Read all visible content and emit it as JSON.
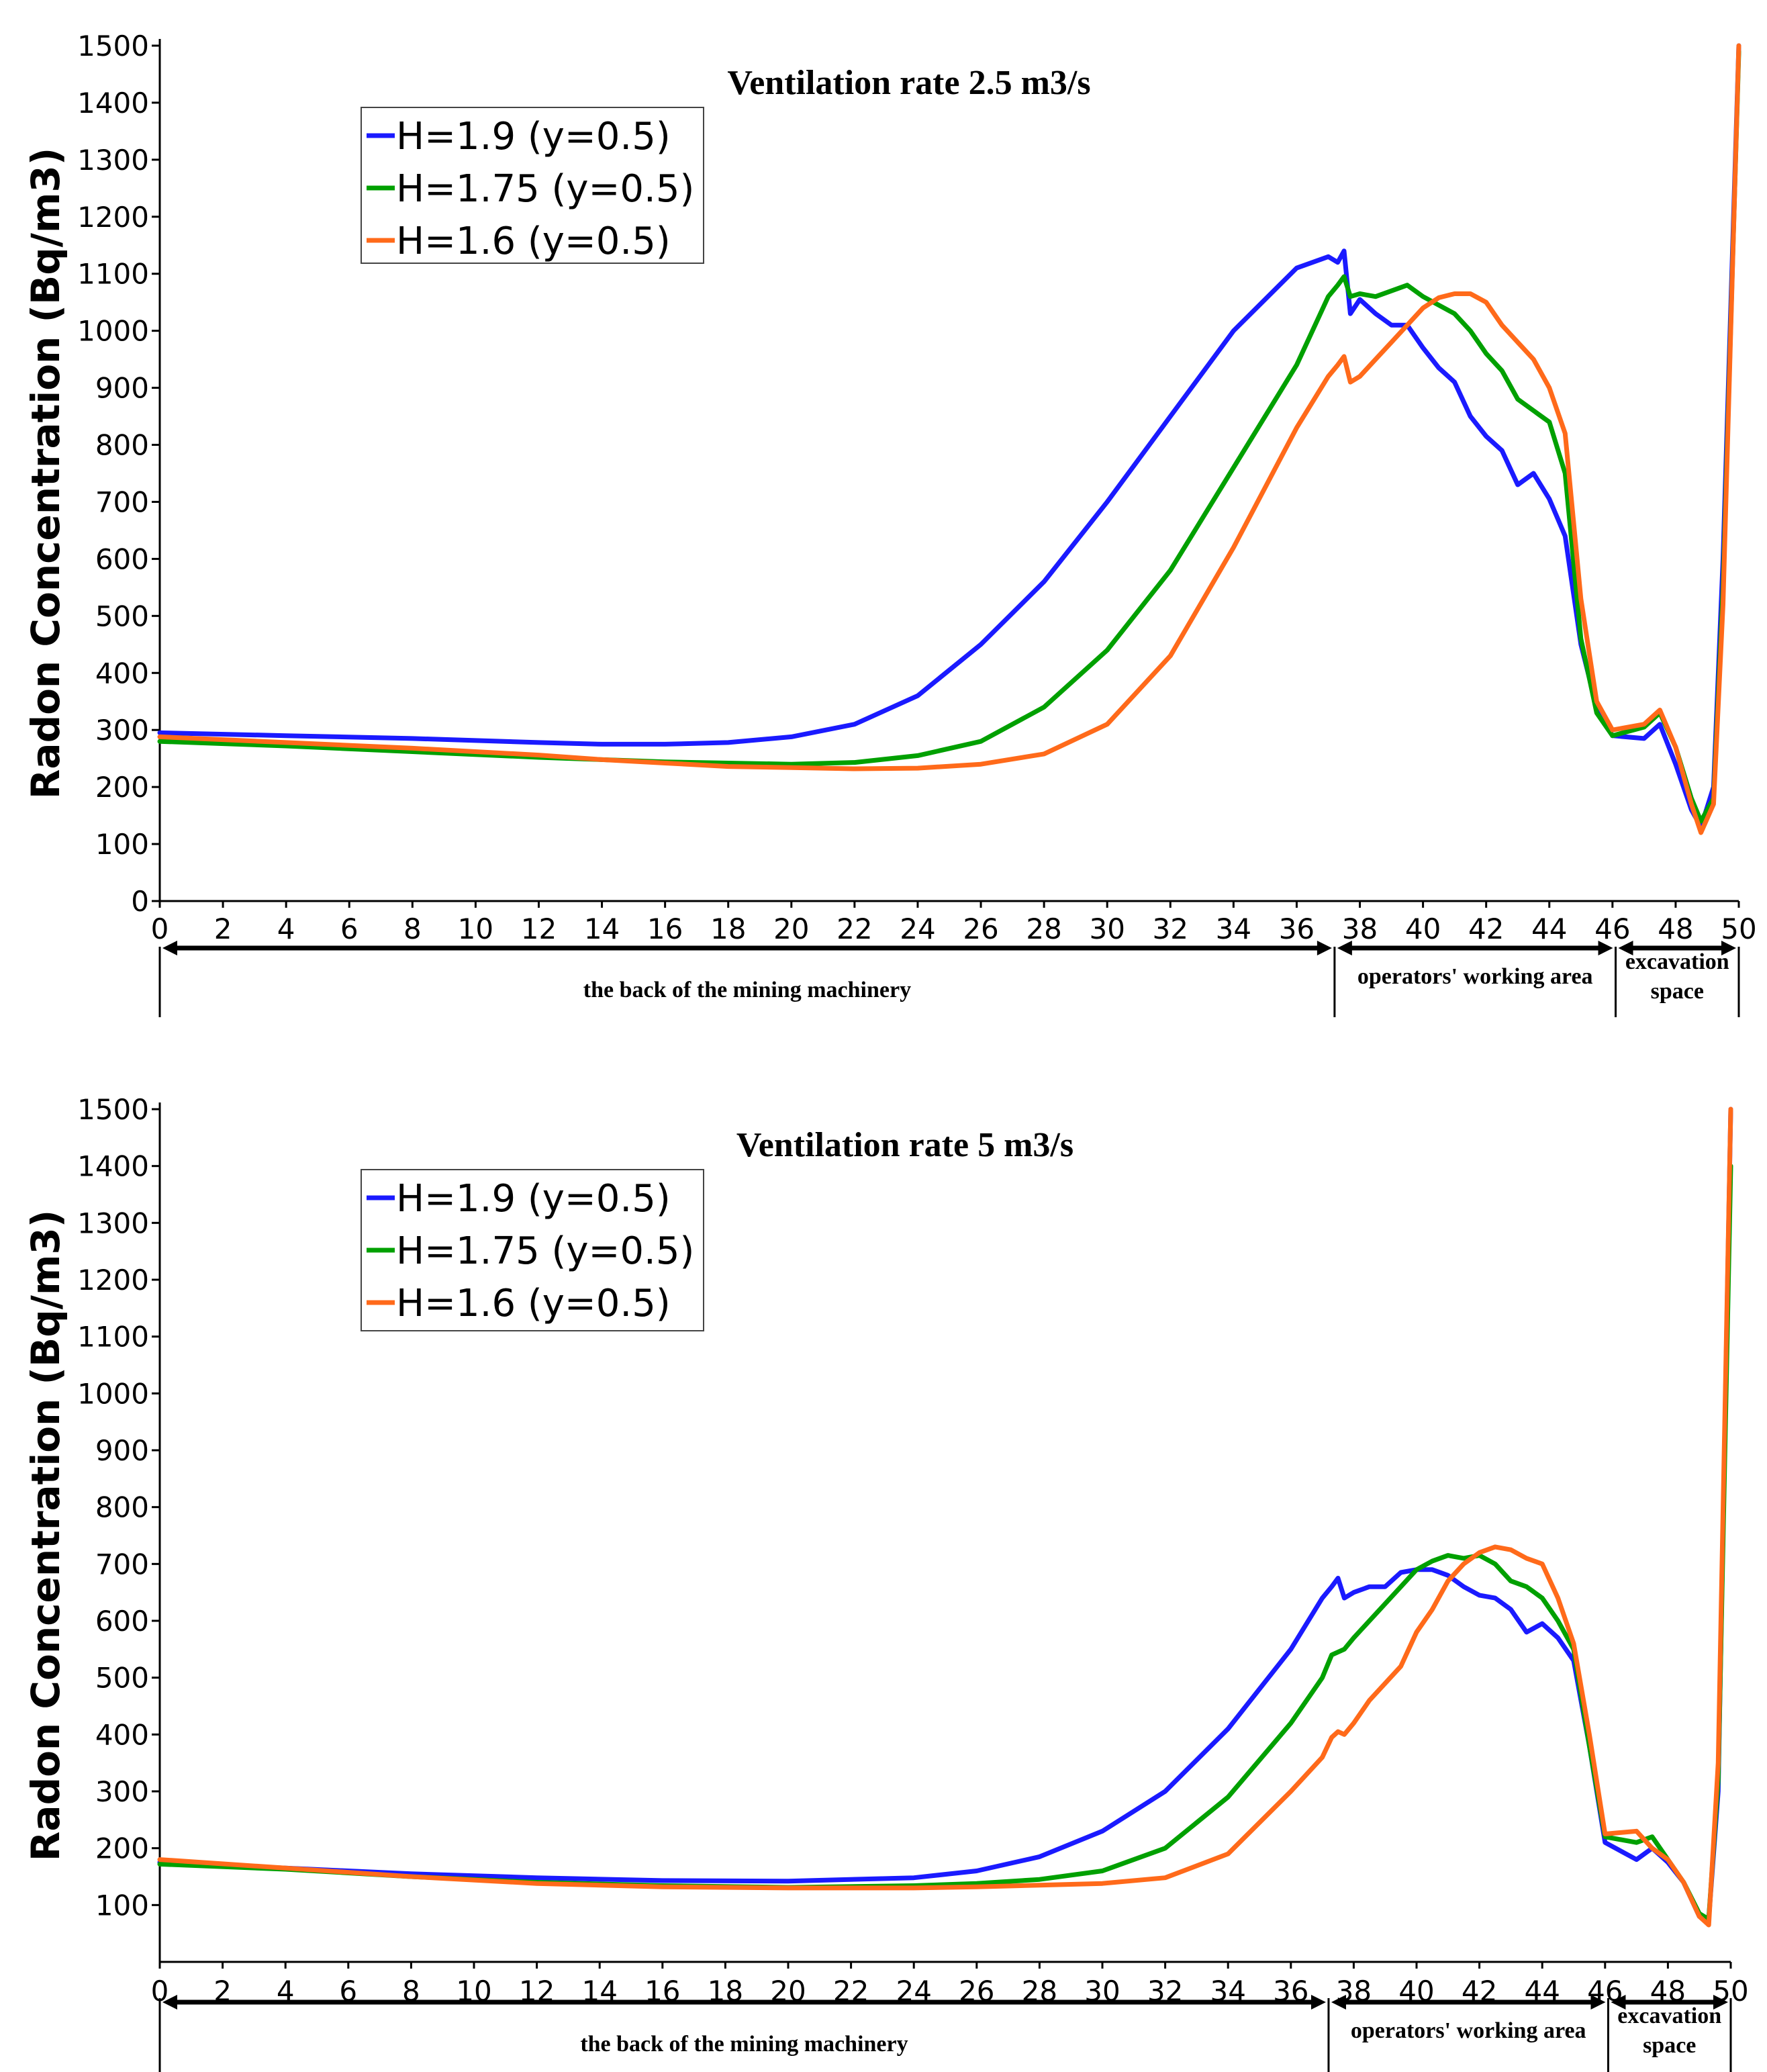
{
  "chart_data": [
    {
      "type": "line",
      "title": "Ventilation rate 2.5 m3/s",
      "xlabel": "",
      "ylabel": "Radon Concentration (Bq/m3)",
      "xlim": [
        0,
        50
      ],
      "ylim": [
        0,
        1500
      ],
      "xticks": [
        0,
        2,
        4,
        6,
        8,
        10,
        12,
        14,
        16,
        18,
        20,
        22,
        24,
        26,
        28,
        30,
        32,
        34,
        36,
        38,
        40,
        42,
        44,
        46,
        48,
        50
      ],
      "yticks": [
        0,
        100,
        200,
        300,
        400,
        500,
        600,
        700,
        800,
        900,
        1000,
        1100,
        1200,
        1300,
        1400,
        1500
      ],
      "series": [
        {
          "name": "H=1.9   (y=0.5)",
          "color": "#1a1aff",
          "x": [
            0,
            4,
            8,
            12,
            14,
            16,
            18,
            20,
            22,
            24,
            26,
            28,
            30,
            32,
            34,
            36,
            37,
            37.3,
            37.5,
            37.7,
            38,
            38.5,
            39,
            39.5,
            40,
            40.5,
            41,
            41.5,
            42,
            42.5,
            43,
            43.5,
            44,
            44.5,
            45,
            45.5,
            46,
            47,
            47.5,
            48,
            48.5,
            48.8,
            49.2,
            49.5,
            50
          ],
          "y": [
            295,
            290,
            285,
            278,
            275,
            275,
            278,
            288,
            310,
            360,
            450,
            560,
            700,
            850,
            1000,
            1110,
            1130,
            1120,
            1140,
            1030,
            1055,
            1030,
            1010,
            1010,
            970,
            935,
            910,
            850,
            815,
            790,
            730,
            750,
            705,
            640,
            450,
            340,
            290,
            285,
            310,
            240,
            160,
            130,
            200,
            600,
            1500
          ]
        },
        {
          "name": "H=1.75 (y=0.5)",
          "color": "#00a000",
          "x": [
            0,
            4,
            8,
            12,
            14,
            16,
            18,
            20,
            22,
            24,
            26,
            28,
            30,
            32,
            34,
            36,
            37,
            37.3,
            37.5,
            37.7,
            38,
            38.5,
            39,
            39.5,
            40,
            40.5,
            41,
            41.5,
            42,
            42.5,
            43,
            43.5,
            44,
            44.5,
            45,
            45.5,
            46,
            47,
            47.5,
            48,
            48.5,
            48.8,
            49.2,
            49.5,
            50
          ],
          "y": [
            280,
            272,
            262,
            252,
            248,
            244,
            242,
            240,
            243,
            255,
            280,
            340,
            440,
            580,
            760,
            940,
            1060,
            1080,
            1095,
            1060,
            1065,
            1060,
            1070,
            1080,
            1060,
            1045,
            1030,
            1000,
            960,
            930,
            880,
            860,
            840,
            750,
            460,
            330,
            290,
            305,
            330,
            270,
            180,
            140,
            180,
            550,
            1490
          ]
        },
        {
          "name": "H=1.6   (y=0.5)",
          "color": "#ff6a1a",
          "x": [
            0,
            4,
            8,
            12,
            14,
            16,
            18,
            20,
            22,
            24,
            26,
            28,
            30,
            32,
            34,
            36,
            37,
            37.3,
            37.5,
            37.7,
            38,
            38.5,
            39,
            39.5,
            40,
            40.5,
            41,
            41.5,
            42,
            42.5,
            43,
            43.5,
            44,
            44.5,
            45,
            45.5,
            46,
            47,
            47.5,
            48,
            48.5,
            48.8,
            49.2,
            49.5,
            50
          ],
          "y": [
            288,
            278,
            268,
            256,
            248,
            242,
            236,
            234,
            232,
            233,
            240,
            258,
            310,
            430,
            620,
            830,
            920,
            940,
            955,
            910,
            920,
            950,
            980,
            1010,
            1040,
            1058,
            1065,
            1065,
            1050,
            1010,
            980,
            950,
            900,
            820,
            530,
            350,
            300,
            310,
            335,
            270,
            170,
            120,
            170,
            520,
            1500
          ]
        }
      ],
      "zones": [
        "the back of the mining machinery",
        "operators' working area",
        "excavation",
        "space"
      ],
      "zone_bounds": [
        0,
        37.2,
        46.1,
        50
      ]
    },
    {
      "type": "line",
      "title": "Ventilation rate 5 m3/s",
      "xlabel": "",
      "ylabel": "Radon Concentration (Bq/m3)",
      "xlim": [
        0,
        50
      ],
      "ylim": [
        0,
        1500
      ],
      "xticks": [
        0,
        2,
        4,
        6,
        8,
        10,
        12,
        14,
        16,
        18,
        20,
        22,
        24,
        26,
        28,
        30,
        32,
        34,
        36,
        38,
        40,
        42,
        44,
        46,
        48,
        50
      ],
      "yticks": [
        100,
        200,
        300,
        400,
        500,
        600,
        700,
        800,
        900,
        1000,
        1100,
        1200,
        1300,
        1400,
        1500
      ],
      "series": [
        {
          "name": "H=1.9   (y=0.5)",
          "color": "#1a1aff",
          "x": [
            0,
            4,
            8,
            12,
            16,
            20,
            24,
            26,
            28,
            30,
            32,
            34,
            36,
            37,
            37.3,
            37.5,
            37.7,
            38,
            38.5,
            39,
            39.5,
            40,
            40.5,
            41,
            41.5,
            42,
            42.5,
            43,
            43.5,
            44,
            44.5,
            45,
            45.5,
            46,
            47,
            47.5,
            48,
            48.5,
            49,
            49.3,
            49.6,
            50
          ],
          "y": [
            175,
            165,
            155,
            148,
            143,
            142,
            148,
            160,
            185,
            230,
            300,
            410,
            550,
            640,
            660,
            675,
            640,
            650,
            660,
            660,
            685,
            690,
            690,
            680,
            660,
            645,
            640,
            620,
            580,
            595,
            570,
            530,
            380,
            210,
            180,
            200,
            175,
            140,
            80,
            75,
            300,
            1500
          ]
        },
        {
          "name": "H=1.75 (y=0.5)",
          "color": "#00a000",
          "x": [
            0,
            4,
            8,
            12,
            16,
            20,
            24,
            26,
            28,
            30,
            32,
            34,
            36,
            37,
            37.3,
            37.5,
            37.7,
            38,
            38.5,
            39,
            39.5,
            40,
            40.5,
            41,
            41.5,
            42,
            42.5,
            43,
            43.5,
            44,
            44.5,
            45,
            45.5,
            46,
            47,
            47.5,
            48,
            48.5,
            49,
            49.3,
            49.6,
            50
          ],
          "y": [
            172,
            163,
            150,
            140,
            134,
            131,
            134,
            138,
            145,
            160,
            200,
            290,
            420,
            500,
            540,
            545,
            550,
            570,
            600,
            630,
            660,
            690,
            705,
            715,
            710,
            715,
            700,
            670,
            660,
            640,
            600,
            550,
            380,
            220,
            210,
            220,
            180,
            140,
            85,
            75,
            320,
            1400
          ]
        },
        {
          "name": "H=1.6   (y=0.5)",
          "color": "#ff6a1a",
          "x": [
            0,
            4,
            8,
            12,
            16,
            20,
            24,
            26,
            28,
            30,
            32,
            34,
            36,
            37,
            37.3,
            37.5,
            37.7,
            38,
            38.5,
            39,
            39.5,
            40,
            40.5,
            41,
            41.5,
            42,
            42.5,
            43,
            43.5,
            44,
            44.5,
            45,
            45.5,
            46,
            47,
            47.5,
            48,
            48.5,
            49,
            49.3,
            49.6,
            50
          ],
          "y": [
            180,
            165,
            150,
            138,
            132,
            130,
            130,
            132,
            135,
            138,
            148,
            190,
            300,
            360,
            395,
            405,
            400,
            420,
            460,
            490,
            520,
            580,
            620,
            670,
            700,
            720,
            730,
            725,
            710,
            700,
            640,
            560,
            400,
            225,
            230,
            200,
            180,
            140,
            80,
            65,
            350,
            1500
          ]
        }
      ],
      "zones": [
        "the back of the mining machinery",
        "operators' working area",
        "excavation",
        "space"
      ],
      "zone_bounds": [
        0,
        37.2,
        46.1,
        50
      ]
    }
  ]
}
